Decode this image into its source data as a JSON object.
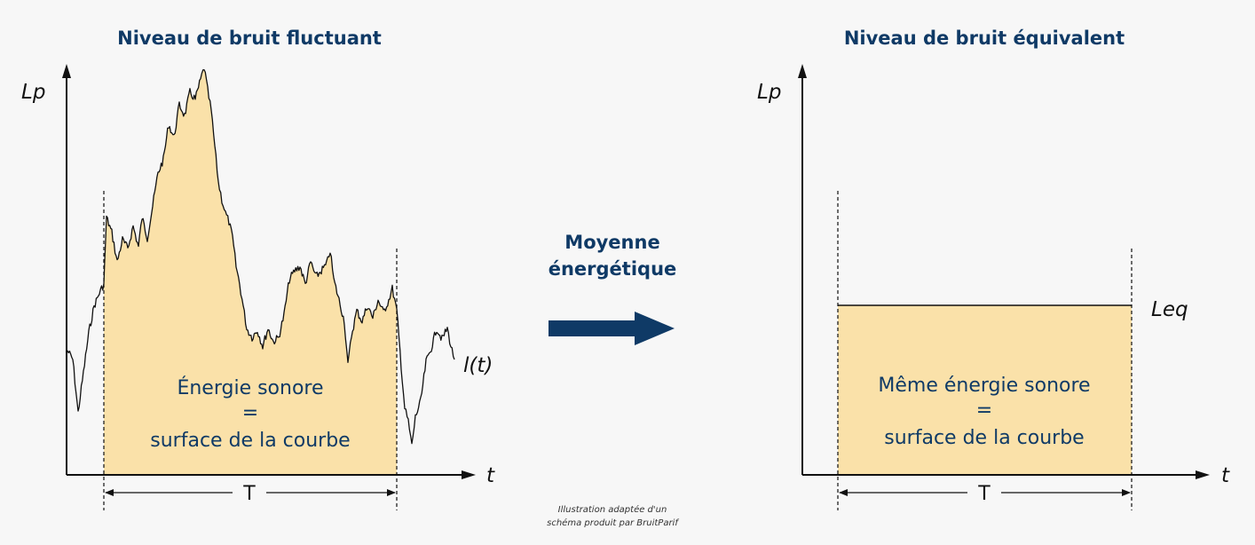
{
  "colors": {
    "background": "#f7f7f7",
    "title": "#0f3a66",
    "fill": "#fae1a9",
    "line": "#111111",
    "arrow": "#0f3a66"
  },
  "left_panel": {
    "title": "Niveau de bruit fluctuant",
    "y_axis_label": "Lp",
    "x_axis_label": "t",
    "curve_label": "l(t)",
    "interval_label": "T",
    "area_text": [
      "Énergie sonore",
      "=",
      "surface de la courbe"
    ]
  },
  "center": {
    "arrow_label": [
      "Moyenne",
      "énergétique"
    ],
    "arrow_icon": "right-arrow-icon",
    "credit": [
      "Illustration adaptée d'un",
      "schéma produit par BruitParif"
    ]
  },
  "right_panel": {
    "title": "Niveau de bruit équivalent",
    "y_axis_label": "Lp",
    "x_axis_label": "t",
    "level_label": "Leq",
    "interval_label": "T",
    "area_text": [
      "Même énergie sonore",
      "=",
      "surface de la courbe"
    ]
  }
}
